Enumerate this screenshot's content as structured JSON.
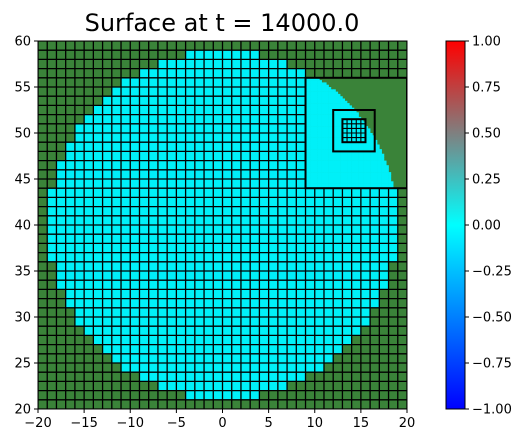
{
  "chart_data": {
    "type": "heatmap",
    "title": "Surface at t =  14000.0",
    "xlabel": "",
    "ylabel": "",
    "xlim": [
      -20,
      20
    ],
    "ylim": [
      20,
      60
    ],
    "x_ticks": [
      -20,
      -15,
      -10,
      -5,
      0,
      5,
      10,
      15,
      20
    ],
    "x_tick_labels": [
      "−20",
      "−15",
      "−10",
      "−5",
      "0",
      "5",
      "10",
      "15",
      "20"
    ],
    "y_ticks": [
      20,
      25,
      30,
      35,
      40,
      45,
      50,
      55,
      60
    ],
    "y_tick_labels": [
      "20",
      "25",
      "30",
      "35",
      "40",
      "45",
      "50",
      "55",
      "60"
    ],
    "colorbar": {
      "range": [
        -1.0,
        1.0
      ],
      "ticks": [
        1.0,
        0.75,
        0.5,
        0.25,
        0.0,
        -0.25,
        -0.5,
        -0.75,
        -1.0
      ],
      "tick_labels": [
        "1.00",
        "0.75",
        "0.50",
        "0.25",
        "0.00",
        "−0.25",
        "−0.50",
        "−0.75",
        "−1.00"
      ],
      "colors": [
        "#0000ff",
        "#00ffff",
        "#ff0000"
      ]
    },
    "land_color": "#3a8339",
    "water_color": "#00f0f8",
    "grid_color": "#000000",
    "water_region": {
      "shape": "disk",
      "center": [
        0,
        40
      ],
      "radius": 19
    },
    "refined_patches": [
      {
        "xlim": [
          9,
          20
        ],
        "ylim": [
          44,
          56
        ],
        "level": 2
      },
      {
        "xlim": [
          12,
          16.5
        ],
        "ylim": [
          48,
          52.5
        ],
        "level": 3
      },
      {
        "xlim": [
          13,
          15.5
        ],
        "ylim": [
          49,
          51.5
        ],
        "level": 4
      }
    ],
    "base_cell_size": 1.0
  }
}
